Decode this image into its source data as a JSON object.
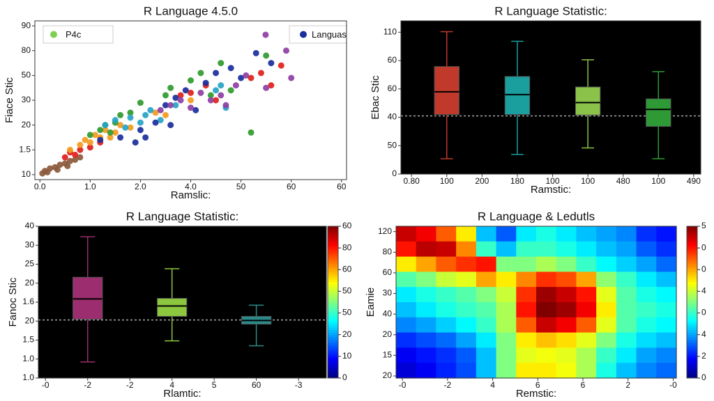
{
  "chart_data": [
    {
      "type": "scatter",
      "title": "R Language 4.5.0",
      "xlabel": "Ramslic:",
      "ylabel": "Fiace Stic",
      "xlim": [
        -0.1,
        6.1
      ],
      "ylim": [
        -0.2,
        6.2
      ],
      "xticks": [
        {
          "value": 0,
          "label": "0.0"
        },
        {
          "value": 1,
          "label": "1.0"
        },
        {
          "value": 2,
          "label": "2.0"
        },
        {
          "value": 3,
          "label": "4.0"
        },
        {
          "value": 4,
          "label": "50"
        },
        {
          "value": 5,
          "label": "60"
        },
        {
          "value": 6,
          "label": "60"
        }
      ],
      "yticks": [
        {
          "value": 0,
          "label": "10"
        },
        {
          "value": 1,
          "label": "1.5"
        },
        {
          "value": 2,
          "label": "20"
        },
        {
          "value": 3,
          "label": "30"
        },
        {
          "value": 4,
          "label": "50"
        },
        {
          "value": 5,
          "label": "80"
        },
        {
          "value": 6,
          "label": "90"
        }
      ],
      "legend": [
        "upper left",
        "upper right"
      ],
      "series": [
        {
          "color": "#8b5a3c",
          "x": [
            0.05,
            0.1,
            0.15,
            0.2,
            0.3,
            0.35,
            0.4,
            0.5,
            0.55,
            0.6,
            0.7,
            0.8
          ],
          "values": [
            0.05,
            0.15,
            0.1,
            0.25,
            0.3,
            0.2,
            0.4,
            0.45,
            0.35,
            0.55,
            0.6,
            0.7
          ]
        },
        {
          "color": "#e0201b",
          "x": [
            0.5,
            0.6,
            0.7,
            0.8,
            1.0,
            1.2,
            2.8,
            3.0,
            3.3,
            3.5,
            4.2,
            4.4,
            4.8,
            4.6
          ],
          "values": [
            0.7,
            0.9,
            0.8,
            1.0,
            1.1,
            1.3,
            3.2,
            3.3,
            3.6,
            3.0,
            3.9,
            4.1,
            4.4,
            3.6
          ]
        },
        {
          "color": "#f39a1e",
          "x": [
            0.6,
            0.8,
            0.9,
            1.0,
            1.1,
            1.2,
            1.3,
            1.5,
            1.6,
            1.8,
            2.3,
            2.5,
            3.0,
            1.4
          ],
          "values": [
            1.0,
            1.2,
            1.4,
            1.3,
            1.6,
            1.5,
            1.8,
            1.7,
            2.0,
            1.9,
            2.5,
            2.4,
            3.0,
            1.5
          ]
        },
        {
          "name": "P4c",
          "color": "#2f9a2f",
          "legend_color": "#7ccf50",
          "x": [
            1.0,
            1.2,
            1.3,
            1.4,
            1.5,
            1.6,
            1.8,
            2.0,
            2.5,
            2.6,
            3.0,
            3.2,
            3.4,
            3.6,
            3.8,
            4.5,
            4.2
          ],
          "values": [
            1.6,
            1.8,
            2.0,
            1.7,
            2.1,
            2.4,
            2.5,
            2.9,
            3.2,
            3.5,
            3.8,
            4.1,
            3.2,
            4.5,
            3.4,
            4.8,
            1.7
          ]
        },
        {
          "color": "#27a3c4",
          "x": [
            1.3,
            1.5,
            1.7,
            1.8,
            2.0,
            2.1,
            2.2,
            2.4,
            2.7,
            3.5,
            3.6,
            3.7
          ],
          "values": [
            2.0,
            2.2,
            1.9,
            2.3,
            2.1,
            2.4,
            2.6,
            2.2,
            2.8,
            3.4,
            3.6,
            2.7
          ]
        },
        {
          "name": "Languas",
          "color": "#1a2e9c",
          "x": [
            1.2,
            1.6,
            1.9,
            2.0,
            2.3,
            2.5,
            2.7,
            2.9,
            3.1,
            3.3,
            3.5,
            3.8,
            4.0,
            4.3,
            4.6,
            2.1,
            2.6
          ],
          "values": [
            1.4,
            1.5,
            1.3,
            1.8,
            2.1,
            2.8,
            3.1,
            3.4,
            2.6,
            3.7,
            4.1,
            4.3,
            3.9,
            4.9,
            4.5,
            1.5,
            2.0
          ]
        },
        {
          "color": "#8e3ea3",
          "x": [
            2.4,
            2.6,
            2.8,
            3.0,
            3.2,
            3.4,
            3.7,
            3.9,
            4.1,
            4.5,
            5.0,
            4.9,
            3.6,
            4.49
          ],
          "values": [
            2.6,
            2.8,
            3.0,
            2.7,
            3.3,
            3.0,
            2.8,
            3.6,
            4.0,
            3.5,
            3.9,
            5.0,
            3.2,
            5.64
          ]
        }
      ]
    },
    {
      "type": "box",
      "title": "R Language Statistic:",
      "xlabel": "Ramstic:",
      "ylabel": "Ebac Stic",
      "background": "#000000",
      "xlim": [
        -0.3,
        8.2
      ],
      "ylim": [
        0,
        5.4
      ],
      "xticks": [
        {
          "value": 0,
          "label": "0.80"
        },
        {
          "value": 1,
          "label": "100"
        },
        {
          "value": 2,
          "label": "200"
        },
        {
          "value": 3,
          "label": "180"
        },
        {
          "value": 4,
          "label": "100"
        },
        {
          "value": 5,
          "label": "100"
        },
        {
          "value": 6,
          "label": "480"
        },
        {
          "value": 7,
          "label": "100"
        },
        {
          "value": 8,
          "label": "490"
        }
      ],
      "yticks": [
        0,
        {
          "value": 1,
          "label": "50"
        },
        {
          "value": 2,
          "label": "40"
        },
        {
          "value": 3,
          "label": "60"
        },
        {
          "value": 4,
          "label": "60"
        },
        {
          "value": 5,
          "label": "110"
        }
      ],
      "reference_line": 2.05,
      "boxes": [
        {
          "x": 1,
          "whislo": 0.54,
          "q1": 2.1,
          "med": 2.9,
          "q3": 3.79,
          "whishi": 5.02,
          "color": "#c0392b"
        },
        {
          "x": 3,
          "whislo": 0.69,
          "q1": 2.1,
          "med": 2.8,
          "q3": 3.44,
          "whishi": 4.68,
          "color": "#1a9e9e"
        },
        {
          "x": 5,
          "whislo": 0.92,
          "q1": 2.08,
          "med": 2.52,
          "q3": 3.07,
          "whishi": 4.03,
          "color": "#8bc34a"
        },
        {
          "x": 7,
          "whislo": 0.54,
          "q1": 1.68,
          "med": 2.28,
          "q3": 2.65,
          "whishi": 3.61,
          "color": "#2e9a36"
        }
      ]
    },
    {
      "type": "box",
      "title": "R Language Statistic:",
      "xlabel": "Rlamtic:",
      "ylabel": "Fanoc Stic",
      "background": "#000000",
      "xlim": [
        -0.17,
        6.66
      ],
      "ylim": [
        0,
        8
      ],
      "xticks": [
        {
          "value": 0,
          "label": "-0"
        },
        {
          "value": 1,
          "label": "-2"
        },
        {
          "value": 2,
          "label": "-2"
        },
        {
          "value": 3,
          "label": "4"
        },
        {
          "value": 4,
          "label": "5"
        },
        {
          "value": 5,
          "label": "60"
        },
        {
          "value": 6,
          "label": "-3"
        }
      ],
      "yticks": [
        {
          "value": 0,
          "label": "1.0"
        },
        {
          "value": 1,
          "label": "1.0"
        },
        {
          "value": 2,
          "label": "1.5"
        },
        {
          "value": 3,
          "label": "20"
        },
        {
          "value": 4,
          "label": "1.6"
        },
        {
          "value": 5,
          "label": "20"
        },
        {
          "value": 6,
          "label": "25"
        },
        {
          "value": 7,
          "label": "30"
        },
        {
          "value": 8,
          "label": "40"
        }
      ],
      "reference_line": 3.06,
      "boxes": [
        {
          "x": 1,
          "whislo": 0.85,
          "q1": 3.1,
          "med": 4.17,
          "q3": 5.31,
          "whishi": 7.45,
          "color": "#9c2d6e"
        },
        {
          "x": 3,
          "whislo": 1.96,
          "q1": 3.25,
          "med": 3.8,
          "q3": 4.2,
          "whishi": 5.76,
          "color": "#8dc63f"
        },
        {
          "x": 5,
          "whislo": 1.7,
          "q1": 2.84,
          "med": 3.03,
          "q3": 3.25,
          "whishi": 3.84,
          "color": "#2a8a8a"
        }
      ],
      "colormap": "jet",
      "colorbar": {
        "lim": [
          0,
          7
        ],
        "ticks": [
          0,
          {
            "value": 1,
            "label": "10"
          },
          {
            "value": 2,
            "label": "20"
          },
          {
            "value": 3,
            "label": "50"
          },
          {
            "value": 4,
            "label": "50"
          },
          {
            "value": 5,
            "label": "60"
          },
          {
            "value": 6,
            "label": "80"
          },
          {
            "value": 7,
            "label": "60"
          }
        ]
      }
    },
    {
      "type": "heatmap",
      "title": "R Language & Ledutls",
      "xlabel": "Remstic:",
      "ylabel": "Eamie",
      "xlim": [
        -0.14,
        6.07
      ],
      "ylim": [
        -0.1,
        7.26
      ],
      "xticks": [
        {
          "value": 0,
          "label": "-0"
        },
        {
          "value": 1,
          "label": "-2"
        },
        {
          "value": 2,
          "label": "4"
        },
        {
          "value": 3,
          "label": "6"
        },
        {
          "value": 4,
          "label": "6"
        },
        {
          "value": 5,
          "label": "2"
        },
        {
          "value": 6,
          "label": "-0"
        }
      ],
      "yticks": [
        {
          "value": 0,
          "label": "20"
        },
        {
          "value": 1,
          "label": "15"
        },
        {
          "value": 2,
          "label": "20"
        },
        {
          "value": 3,
          "label": "40"
        },
        {
          "value": 4,
          "label": "30"
        },
        {
          "value": 5,
          "label": "60"
        },
        {
          "value": 6,
          "label": "80"
        },
        {
          "value": 7,
          "label": "120"
        }
      ],
      "colormap": "jet",
      "colorbar": {
        "lim": [
          0,
          7
        ],
        "ticks": [
          0,
          {
            "value": 1,
            "label": "2"
          },
          {
            "value": 2,
            "label": "4"
          },
          {
            "value": 3,
            "label": "0"
          },
          4,
          {
            "value": 5,
            "label": "0"
          },
          {
            "value": 6,
            "label": "0"
          },
          {
            "value": 7,
            "label": "5"
          }
        ]
      },
      "z": [
        [
          6.5,
          6.2,
          5.5,
          4.5,
          2.2,
          1.5,
          2.5,
          2.8,
          2.5,
          2.2,
          2.0,
          1.8,
          1.2,
          1.0
        ],
        [
          6.0,
          6.6,
          6.5,
          5.2,
          3.0,
          2.2,
          3.0,
          3.0,
          2.8,
          2.5,
          2.2,
          2.0,
          1.5,
          1.2
        ],
        [
          4.5,
          5.0,
          5.5,
          5.8,
          6.0,
          3.5,
          3.5,
          3.8,
          3.5,
          3.0,
          2.6,
          2.3,
          2.0,
          1.6
        ],
        [
          3.2,
          3.5,
          4.0,
          4.2,
          5.0,
          4.5,
          5.2,
          5.8,
          5.6,
          5.0,
          3.6,
          3.0,
          2.5,
          2.2
        ],
        [
          2.5,
          2.8,
          3.0,
          3.2,
          3.5,
          4.0,
          5.8,
          6.8,
          6.5,
          6.0,
          4.2,
          3.2,
          2.8,
          2.6
        ],
        [
          2.2,
          2.5,
          2.8,
          3.0,
          3.2,
          3.8,
          6.0,
          7.0,
          6.8,
          6.2,
          4.5,
          3.2,
          3.0,
          2.8
        ],
        [
          1.8,
          2.0,
          2.3,
          2.6,
          3.0,
          3.8,
          5.5,
          6.5,
          6.2,
          5.5,
          4.2,
          3.2,
          2.8,
          2.6
        ],
        [
          1.2,
          1.4,
          1.6,
          2.0,
          2.5,
          3.5,
          4.5,
          4.8,
          4.6,
          4.2,
          3.5,
          2.8,
          2.4,
          2.2
        ],
        [
          0.8,
          1.0,
          1.2,
          1.5,
          2.2,
          3.5,
          4.2,
          4.3,
          4.2,
          3.8,
          3.0,
          2.5,
          2.0,
          1.8
        ],
        [
          0.6,
          0.8,
          1.1,
          1.4,
          2.2,
          3.5,
          4.5,
          4.5,
          4.3,
          3.8,
          2.8,
          2.2,
          1.8,
          1.6
        ]
      ]
    }
  ]
}
